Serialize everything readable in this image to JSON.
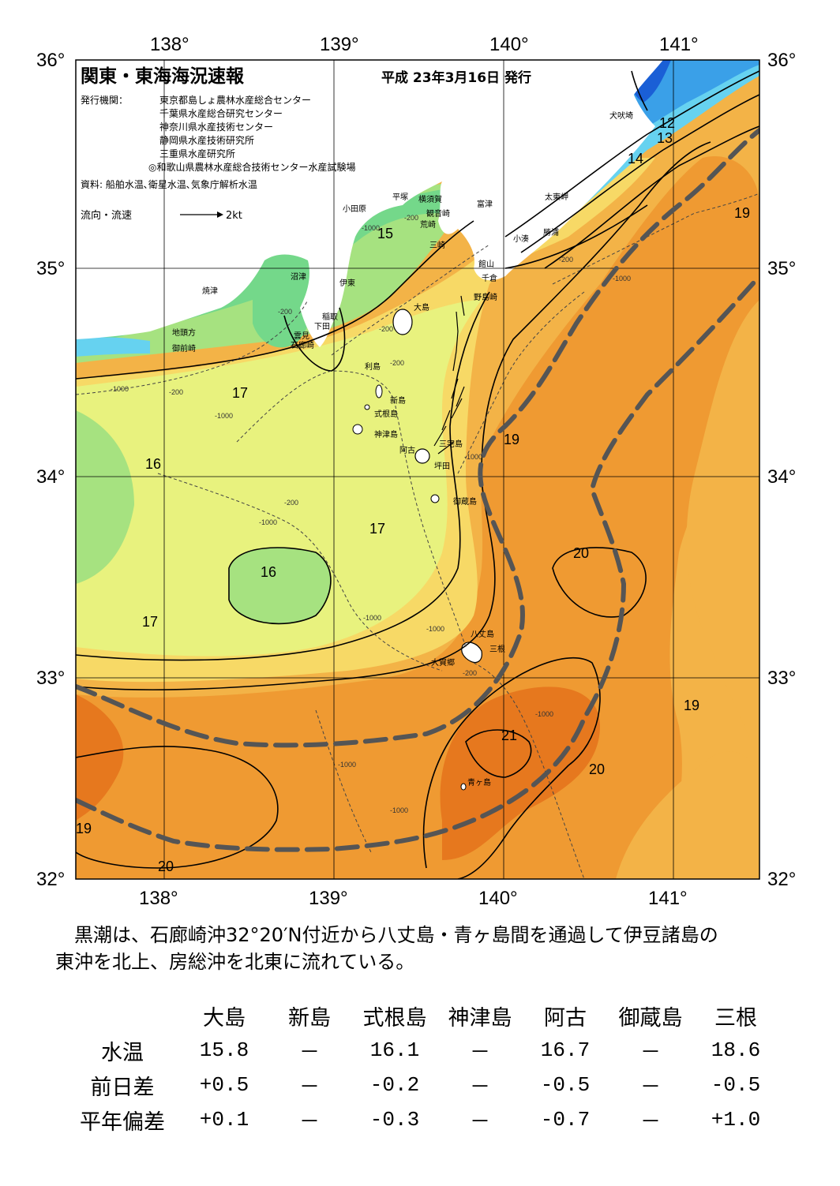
{
  "header": {
    "title": "関東・東海海況速報",
    "date": "平成 23年3月16日 発行",
    "publisher_label": "発行機関：",
    "publishers": [
      "東京都島しょ農林水産総合センター",
      "千葉県水産総合研究センター",
      "神奈川県水産技術センター",
      "静岡県水産技術研究所",
      "三重県水産研究所",
      "◎和歌山県農林水産総合技術センター水産試験場"
    ],
    "source": "資料: 船舶水温､衛星水温､気象庁解析水温",
    "flow_legend": "流向・流速",
    "flow_scale": "2kt"
  },
  "axes": {
    "lon_ticks": [
      "138°",
      "139°",
      "140°",
      "141°"
    ],
    "lat_ticks": [
      "36°",
      "35°",
      "34°",
      "33°",
      "32°"
    ]
  },
  "places": {
    "inubozaki": "犬吠埼",
    "taitozaki": "太東岬",
    "katsuura": "勝浦",
    "kominato": "小湊",
    "futtsu": "富津",
    "yokosuka": "横須賀",
    "kannonzaki": "観音崎",
    "arasaki": "荒崎",
    "misaki": "三崎",
    "hiratsuka": "平塚",
    "odawara": "小田原",
    "tateyama": "館山",
    "chikura": "千倉",
    "nojimazaki": "野島崎",
    "numazu": "沼津",
    "ito": "伊東",
    "inatori": "稲取",
    "shimoda": "下田",
    "mera": "雲見",
    "irozaki": "石廊崎",
    "yaizu": "焼津",
    "jitogata": "地頭方",
    "omaezaki": "御前崎",
    "oshima": "大島",
    "toshima": "利島",
    "niijima": "新島",
    "shikinejima": "式根島",
    "kozushima": "神津島",
    "miyake": "三宅島",
    "ako": "阿古",
    "tsubota": "坪田",
    "mikurajima": "御蔵島",
    "hachijojima": "八丈島",
    "mitsune": "三根",
    "okago": "大賀郷",
    "aogashima": "青ヶ島"
  },
  "isotherm_labels": [
    "12",
    "13",
    "14",
    "15",
    "16",
    "16",
    "17",
    "17",
    "17",
    "19",
    "19",
    "19",
    "19",
    "20",
    "20",
    "20",
    "21"
  ],
  "depth_labels": [
    "-200",
    "-1000"
  ],
  "colors": {
    "t12": "#1a5fd6",
    "t13": "#3aa0e8",
    "t14": "#66d2f0",
    "t15": "#74d88a",
    "t16": "#a6e280",
    "t17": "#e8f27e",
    "t18": "#f7d966",
    "t19": "#f3b347",
    "t20": "#ef9a32",
    "t21": "#e6781e",
    "kuroshio_axis": "#555555",
    "land": "#ffffff"
  },
  "summary": {
    "line1": "黒潮は、石廊崎沖32°20′N付近から八丈島・青ヶ島間を通過して伊豆諸島の",
    "line2": "東沖を北上、房総沖を北東に流れている。"
  },
  "stats": {
    "columns": [
      "大島",
      "新島",
      "式根島",
      "神津島",
      "阿古",
      "御蔵島",
      "三根"
    ],
    "rows": [
      {
        "label": "水温",
        "values": [
          "15.8",
          "－",
          "16.1",
          "－",
          "16.7",
          "－",
          "18.6"
        ]
      },
      {
        "label": "前日差",
        "values": [
          "+0.5",
          "－",
          "-0.2",
          "－",
          "-0.5",
          "－",
          "-0.5"
        ]
      },
      {
        "label": "平年偏差",
        "values": [
          "+0.1",
          "－",
          "-0.3",
          "－",
          "-0.7",
          "－",
          "+1.0"
        ]
      }
    ]
  }
}
